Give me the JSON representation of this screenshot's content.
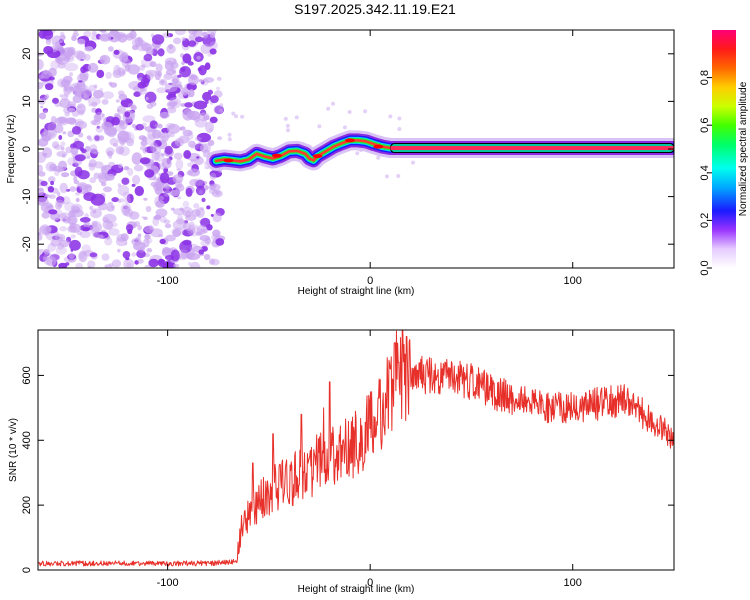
{
  "title": "S197.2025.342.11.19.E21",
  "colors": {
    "snr_line": "#e8302a",
    "noise_blob": "#8c33e6",
    "noise_light": "#c9a3f0"
  },
  "chart_data": [
    {
      "type": "heatmap",
      "name": "spectrogram",
      "xlabel": "Height of straight line (km)",
      "ylabel": "Frequency (Hz)",
      "xlim": [
        -164,
        150
      ],
      "ylim": [
        -25,
        25
      ],
      "xticks": [
        -100,
        0,
        100
      ],
      "yticks": [
        -20,
        -10,
        0,
        10,
        20
      ],
      "noise_region_x": [
        -164,
        -74
      ],
      "signal_track": {
        "x": [
          -76,
          -72,
          -68,
          -64,
          -60,
          -56,
          -52,
          -48,
          -44,
          -40,
          -36,
          -32,
          -30,
          -28,
          -26,
          -22,
          -18,
          -14,
          -10,
          -6,
          -2,
          2,
          6,
          10,
          20,
          40,
          60,
          80,
          100,
          120,
          150
        ],
        "y": [
          -2.5,
          -2.2,
          -2.4,
          -2.6,
          -2.2,
          -1.0,
          -1.6,
          -2.0,
          -1.4,
          -0.5,
          -0.4,
          -1.0,
          -2.0,
          -2.4,
          -1.5,
          -0.5,
          0.5,
          1.2,
          1.8,
          1.8,
          1.6,
          1.0,
          0.5,
          0.2,
          0.2,
          0.2,
          0.2,
          0.2,
          0.2,
          0.2,
          0.2
        ]
      },
      "colorbar": {
        "label": "Normalized spectral amplitude",
        "range": [
          0.0,
          1.0
        ],
        "ticks": [
          "0.0",
          "0.2",
          "0.4",
          "0.6",
          "0.8"
        ],
        "tick_values": [
          0.0,
          0.2,
          0.4,
          0.6,
          0.8
        ]
      }
    },
    {
      "type": "line",
      "name": "snr",
      "xlabel": "Height of straight line (km)",
      "ylabel": "SNR (10 * v/v)",
      "xlim": [
        -164,
        150
      ],
      "ylim": [
        0,
        740
      ],
      "xticks": [
        -100,
        0,
        100
      ],
      "yticks": [
        0,
        200,
        400,
        600
      ],
      "series": [
        {
          "name": "SNR",
          "x": [
            -164,
            -150,
            -130,
            -110,
            -90,
            -75,
            -66,
            -64,
            -60,
            -56,
            -50,
            -46,
            -40,
            -36,
            -30,
            -26,
            -20,
            -16,
            -10,
            -6,
            -2,
            2,
            6,
            10,
            14,
            16,
            20,
            26,
            30,
            40,
            50,
            60,
            70,
            80,
            90,
            100,
            110,
            120,
            126,
            130,
            136,
            140,
            145,
            150
          ],
          "y": [
            20,
            20,
            20,
            20,
            20,
            22,
            25,
            120,
            170,
            200,
            240,
            260,
            270,
            290,
            300,
            330,
            350,
            350,
            380,
            400,
            420,
            460,
            500,
            560,
            600,
            610,
            600,
            600,
            600,
            600,
            580,
            550,
            530,
            510,
            500,
            500,
            510,
            520,
            520,
            520,
            470,
            450,
            430,
            410
          ]
        }
      ],
      "spikes": {
        "x": [
          -58,
          -48,
          -34,
          -23,
          -20,
          4,
          8,
          10,
          12,
          14,
          16,
          18
        ],
        "y": [
          330,
          420,
          480,
          500,
          580,
          530,
          500,
          620,
          700,
          640,
          740,
          720
        ]
      }
    }
  ]
}
